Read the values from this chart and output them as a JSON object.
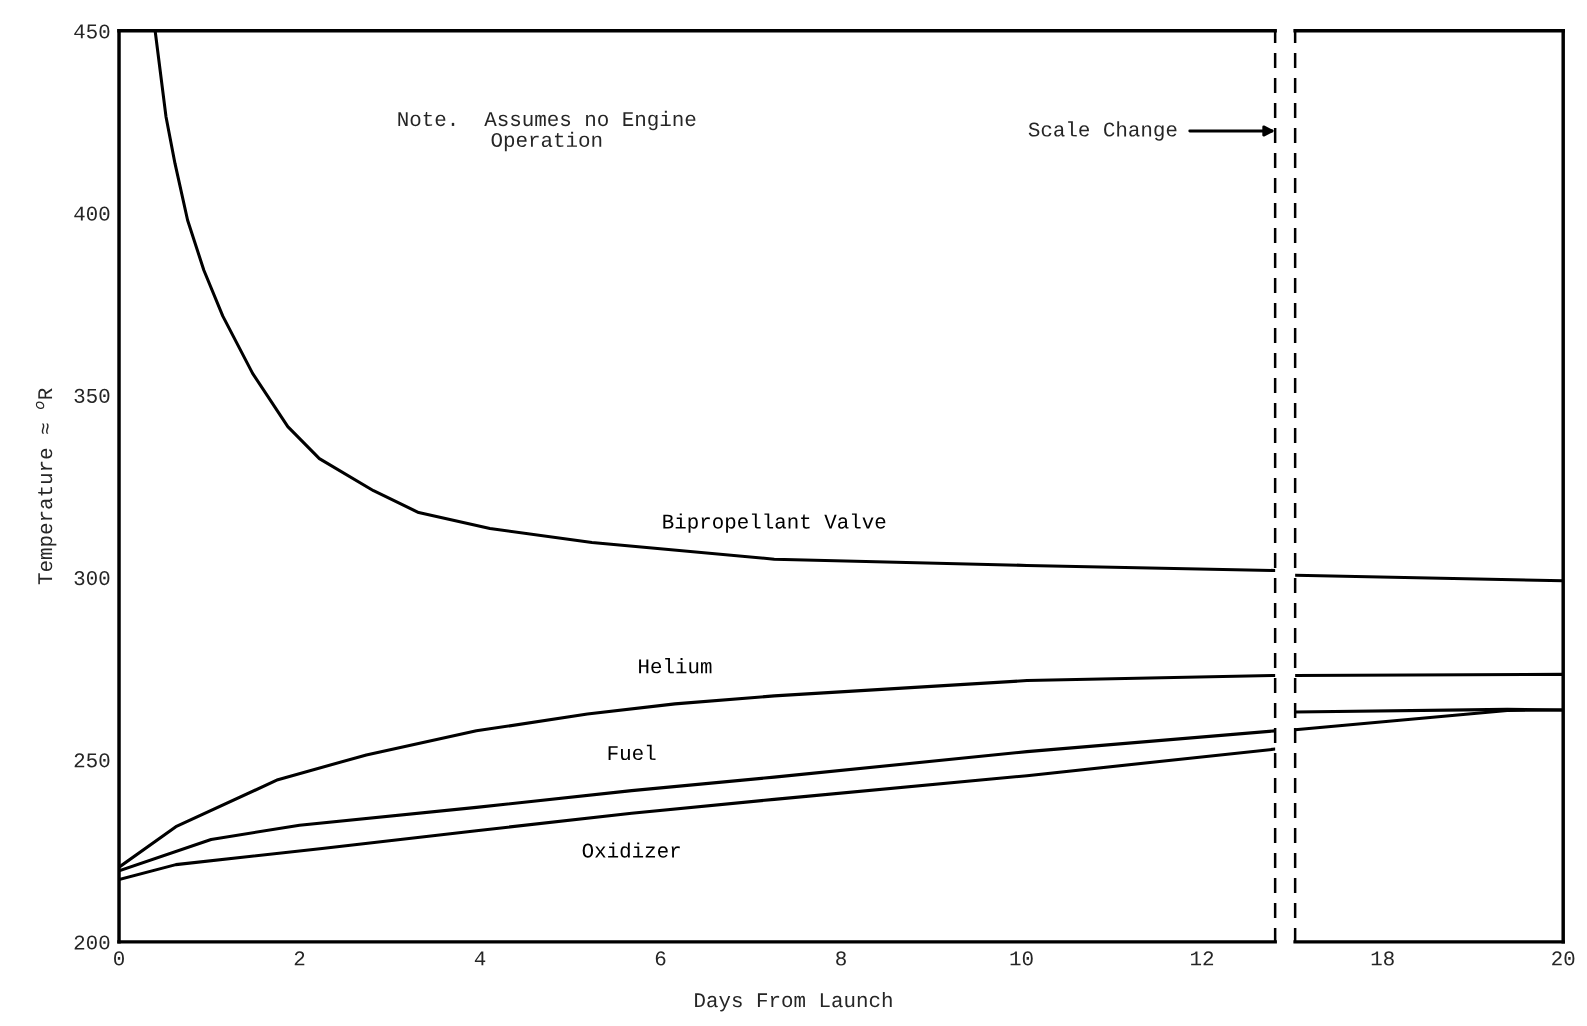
{
  "chart_data": [
    {
      "type": "line",
      "xlabel": "Days From Launch",
      "ylabel": "Temperature ≈ $^{o}$R",
      "xlim": [
        0,
        12.81
      ],
      "xticks": [
        0,
        2,
        4,
        6,
        8,
        10,
        12
      ],
      "ylim": [
        200,
        450
      ],
      "yticks": [
        200,
        250,
        300,
        350,
        400,
        450
      ],
      "grid": false,
      "legend": false,
      "marker": "none",
      "line_style": "solid",
      "annotations": [
        "Note.  Assumes no Engine\nOperation",
        "Scale Change"
      ],
      "series": [
        {
          "name": "Bipropellant Valve",
          "color": "#000000",
          "x": [
            0.4,
            0.52,
            0.62,
            0.76,
            0.94,
            1.15,
            1.48,
            1.87,
            2.22,
            2.82,
            3.32,
            4.11,
            5.24,
            7.26,
            10.06,
            12.81
          ],
          "values": [
            450,
            426.5,
            413.6,
            398,
            384.3,
            371.7,
            356,
            341.4,
            332.6,
            323.8,
            317.8,
            313.4,
            309.6,
            305,
            303.3,
            301.9
          ]
        },
        {
          "name": "Helium",
          "color": "#000000",
          "x": [
            0,
            0.63,
            1.76,
            2.74,
            3.96,
            5.19,
            6.16,
            7.26,
            10.06,
            12.81
          ],
          "values": [
            220.5,
            231.6,
            244.5,
            251.3,
            257.9,
            262.5,
            265.3,
            267.5,
            271.7,
            273.1
          ]
        },
        {
          "name": "Fuel",
          "color": "#000000",
          "x": [
            0,
            1.02,
            2.0,
            3.96,
            5.68,
            7.26,
            10.06,
            12.81
          ],
          "values": [
            219.5,
            228.1,
            232,
            236.9,
            241.5,
            245.2,
            252.2,
            257.9
          ]
        },
        {
          "name": "Oxidizer",
          "color": "#000000",
          "x": [
            0,
            0.63,
            2.25,
            3.96,
            5.68,
            7.26,
            10.06,
            12.81
          ],
          "values": [
            217.1,
            221.2,
            225.6,
            230.5,
            235.3,
            239.1,
            245.6,
            252.9
          ]
        }
      ]
    },
    {
      "type": "line",
      "xlim": [
        17.03,
        20
      ],
      "xticks": [
        18,
        20
      ],
      "ylim": [
        200,
        450
      ],
      "tick_labels": "x",
      "grid": false,
      "legend": false,
      "marker": "none",
      "line_style": "solid",
      "series": [
        {
          "color": "#000000",
          "x": [
            17.03,
            20.0
          ],
          "values": [
            300.6,
            299.1
          ]
        },
        {
          "color": "#000000",
          "x": [
            17.03,
            20.0
          ],
          "values": [
            273.1,
            273.4
          ]
        },
        {
          "color": "#000000",
          "x": [
            17.03,
            19.38,
            20.0
          ],
          "values": [
            263.1,
            263.8,
            263.6
          ]
        },
        {
          "color": "#000000",
          "x": [
            17.03,
            19.38,
            20.0
          ],
          "values": [
            258.2,
            263.5,
            263.6
          ]
        }
      ]
    }
  ]
}
